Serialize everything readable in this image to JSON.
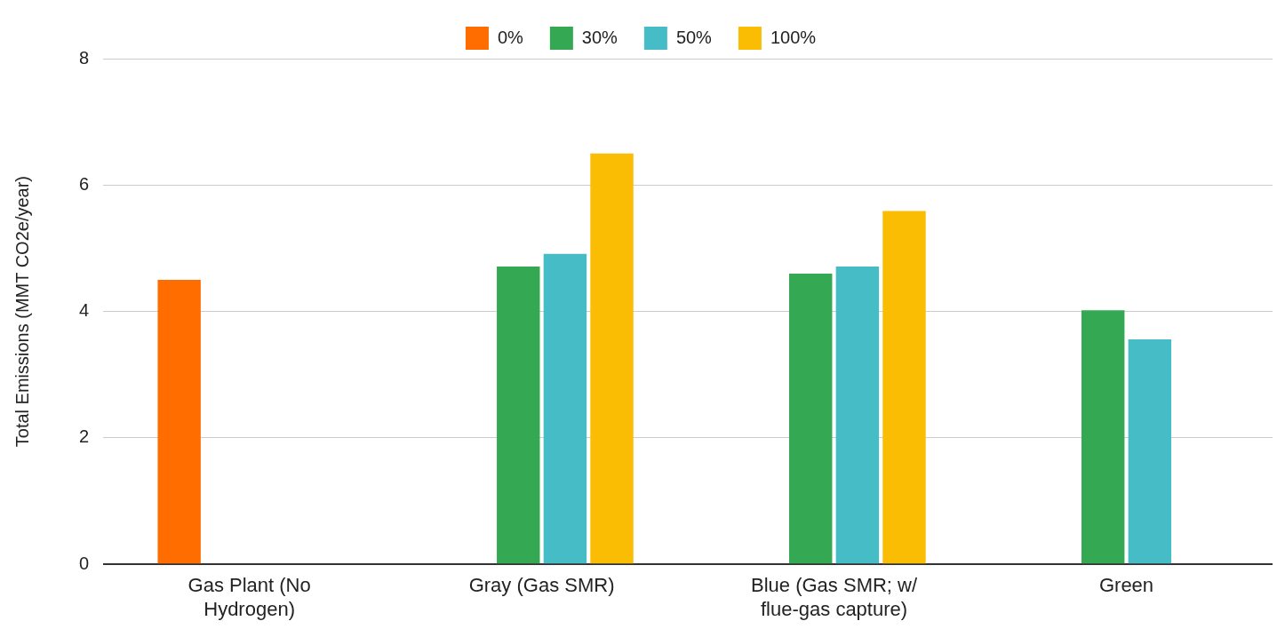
{
  "chart_data": {
    "type": "bar",
    "ylabel": "Total Emissions (MMT CO2e/year)",
    "categories": [
      "Gas Plant (No Hydrogen)",
      "Gray (Gas SMR)",
      "Blue (Gas SMR; w/ flue-gas capture)",
      "Green"
    ],
    "series": [
      {
        "name": "0%",
        "color": "#ff6d01",
        "values": [
          4.5,
          null,
          null,
          null
        ]
      },
      {
        "name": "30%",
        "color": "#34a853",
        "values": [
          null,
          4.71,
          4.6,
          4.02
        ]
      },
      {
        "name": "50%",
        "color": "#46bdc6",
        "values": [
          null,
          4.91,
          4.71,
          3.56
        ]
      },
      {
        "name": "100%",
        "color": "#fbbc04",
        "values": [
          null,
          6.5,
          5.59,
          null
        ]
      }
    ],
    "ylim": [
      0,
      8
    ],
    "yticks": [
      0,
      2,
      4,
      6,
      8
    ],
    "grid": "y",
    "legend": "top"
  }
}
